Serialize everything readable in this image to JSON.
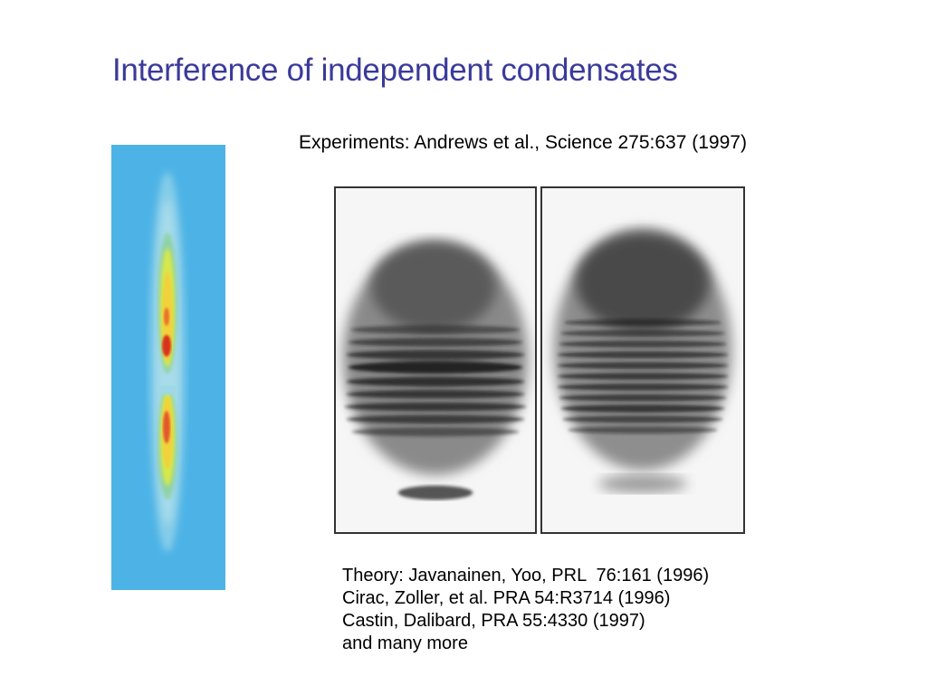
{
  "slide": {
    "title": "Interference of independent condensates",
    "experiments_line": "Experiments: Andrews et al., Science 275:637 (1997)",
    "theory_lines": [
      "Theory: Javanainen, Yoo, PRL  76:161 (1996)",
      "Cirac, Zoller, et al. PRA 54:R3714 (1996)",
      "Castin, Dalibard, PRA 55:4330 (1997)",
      "and many more"
    ]
  },
  "colors": {
    "title": "#3a3a9a",
    "density_background": "#4db3e6",
    "density_peak": "#d9301c"
  }
}
